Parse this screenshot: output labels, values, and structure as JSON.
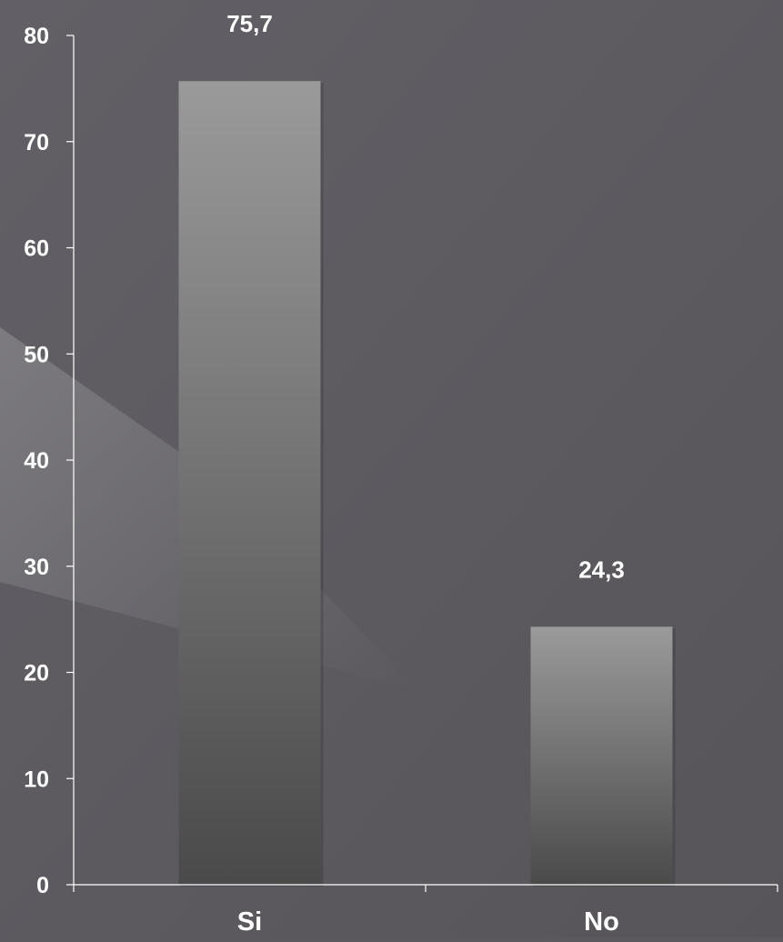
{
  "chart_data": {
    "type": "bar",
    "categories": [
      "Si",
      "No"
    ],
    "values": [
      75.7,
      24.3
    ],
    "data_labels": [
      "75,7",
      "24,3"
    ],
    "y_ticks": [
      0,
      10,
      20,
      30,
      40,
      50,
      60,
      70,
      80
    ],
    "ylim": [
      0,
      80
    ],
    "grid": false,
    "legend": "none",
    "colors": {
      "background": "#5b595e",
      "bar_top": "#9a9a9a",
      "bar_bottom": "#4a4a4a",
      "axis": "#ffffff",
      "text": "#ffffff"
    }
  }
}
